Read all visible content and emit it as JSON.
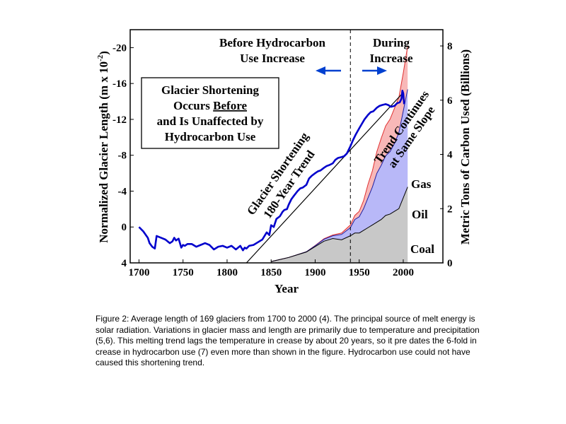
{
  "chart_data": {
    "type": "line",
    "xlabel": "Year",
    "ylabel_left": "Normalized Glacier Length (m x 10",
    "ylabel_left_exp": "-2",
    "ylabel_left_close": ")",
    "ylabel_right": "Metric Tons of Carbon Used (Billions)",
    "xlim": [
      1690,
      2045
    ],
    "ylim_left": [
      4,
      -22
    ],
    "ylim_right": [
      0,
      8.6
    ],
    "x_ticks": [
      "1700",
      "1750",
      "1800",
      "1850",
      "1900",
      "1950",
      "2000"
    ],
    "x_tick_values": [
      1700,
      1750,
      1800,
      1850,
      1900,
      1950,
      2000
    ],
    "y_left_ticks": [
      "-20",
      "-16",
      "-12",
      "-8",
      "-4",
      "0",
      "4"
    ],
    "y_left_tick_values": [
      -20,
      -16,
      -12,
      -8,
      -4,
      0,
      4
    ],
    "y_right_ticks": [
      "8",
      "6",
      "4",
      "2",
      "0"
    ],
    "y_right_tick_values": [
      8,
      6,
      4,
      2,
      0
    ],
    "glacier_length": {
      "x": [
        1700,
        1705,
        1710,
        1712,
        1715,
        1718,
        1720,
        1725,
        1730,
        1735,
        1738,
        1740,
        1742,
        1745,
        1748,
        1750,
        1752,
        1755,
        1760,
        1765,
        1770,
        1775,
        1780,
        1785,
        1790,
        1795,
        1800,
        1805,
        1810,
        1815,
        1818,
        1820,
        1822,
        1825,
        1830,
        1835,
        1840,
        1845,
        1848,
        1850,
        1853,
        1856,
        1860,
        1863,
        1865,
        1868,
        1870,
        1873,
        1876,
        1880,
        1883,
        1886,
        1890,
        1893,
        1896,
        1900,
        1903,
        1906,
        1910,
        1913,
        1916,
        1920,
        1923,
        1926,
        1930,
        1933,
        1936,
        1940,
        1943,
        1946,
        1950,
        1953,
        1956,
        1960,
        1963,
        1966,
        1970,
        1973,
        1976,
        1980,
        1983,
        1986,
        1990,
        1993,
        1996,
        1998,
        1999,
        2000,
        2001
      ],
      "values": [
        0,
        0.5,
        1.2,
        1.8,
        2.2,
        2.4,
        1,
        1.2,
        1.4,
        1.8,
        1.6,
        1.2,
        1.5,
        1.3,
        2.3,
        2,
        2.1,
        1.9,
        1.9,
        2.2,
        2,
        1.8,
        2,
        2.5,
        2.2,
        2.1,
        2.3,
        2.1,
        2.5,
        2.1,
        2.6,
        2.3,
        2.4,
        2.1,
        2,
        1.7,
        1.4,
        0.6,
        0.9,
        -0.2,
        0,
        -0.9,
        -1.2,
        -1.7,
        -1.9,
        -2,
        -2.5,
        -3.1,
        -3.5,
        -4,
        -4.3,
        -4.4,
        -4.7,
        -5.4,
        -5.7,
        -6,
        -6.2,
        -6.3,
        -6.6,
        -6.8,
        -6.9,
        -7.1,
        -7.5,
        -7.7,
        -7.8,
        -7.9,
        -8.2,
        -9,
        -9.7,
        -10.3,
        -11,
        -11.5,
        -12,
        -12.5,
        -12.8,
        -12.9,
        -13.3,
        -13.5,
        -13.6,
        -13.7,
        -13.6,
        -13.4,
        -13.5,
        -13.8,
        -13.9,
        -14.3,
        -15.2,
        -14.9,
        -13.7
      ]
    },
    "trend_line": {
      "x": [
        1822,
        2000
      ],
      "values": [
        4.4,
        -15
      ]
    },
    "hydrocarbon_use": {
      "x": [
        1850,
        1870,
        1890,
        1900,
        1910,
        1920,
        1930,
        1940,
        1945,
        1950,
        1955,
        1960,
        1965,
        1970,
        1975,
        1980,
        1985,
        1990,
        1995,
        2000,
        2005
      ],
      "coal": [
        0.05,
        0.2,
        0.4,
        0.6,
        0.8,
        0.9,
        0.85,
        1,
        1.1,
        1.1,
        1.2,
        1.3,
        1.4,
        1.5,
        1.6,
        1.75,
        1.8,
        1.9,
        2,
        2.4,
        2.8
      ],
      "oil": [
        0,
        0,
        0.01,
        0.03,
        0.07,
        0.1,
        0.2,
        0.3,
        0.5,
        0.6,
        0.8,
        1.1,
        1.4,
        1.8,
        2,
        2.2,
        2.3,
        2.5,
        2.8,
        3.2,
        3.6
      ],
      "gas": [
        0,
        0,
        0,
        0.01,
        0.02,
        0.03,
        0.05,
        0.1,
        0.15,
        0.2,
        0.3,
        0.5,
        0.6,
        0.8,
        1,
        1.1,
        1.2,
        1.3,
        1.3,
        1.4,
        1.6
      ]
    },
    "period_marker_year": 1940,
    "annotations": {
      "before_line1": "Before Hydrocarbon",
      "before_line2": "Use Increase",
      "during_line1": "During",
      "during_line2": "Increase",
      "box_line1": "Glacier Shortening",
      "box_line2_pre": "Occurs ",
      "box_line2_u": "Before",
      "box_line3": "and Is Unaffected by",
      "box_line4": "Hydrocarbon Use",
      "trend_label_line1": "Glacier Shortening",
      "trend_label_line2": "180-Year Trend",
      "continues_line1": "Trend Continues",
      "continues_line2": "at Same Slope",
      "gas_label": "Gas",
      "oil_label": "Oil",
      "coal_label": "Coal"
    },
    "colors": {
      "glacier": "#0000cc",
      "coal_fill": "#c8c8c8",
      "oil_fill": "#b8b8f8",
      "gas_fill": "#f8b8b8",
      "coal_line": "#000000",
      "oil_line": "#2020a0",
      "gas_line": "#e03030",
      "arrow": "#0040d0"
    }
  },
  "caption": "Figure 2: Average length of 169 glaciers from 1700 to 2000 (4). The principal source of melt energy is solar radiation. Variations in glacier mass and length are primarily due to temperature and precipitation (5,6). This melting trend lags the temperature in crease by about 20 years, so it pre dates the 6-fold in crease in hydrocarbon use (7) even more than shown in the figure. Hydrocarbon use could not have caused this shortening trend."
}
